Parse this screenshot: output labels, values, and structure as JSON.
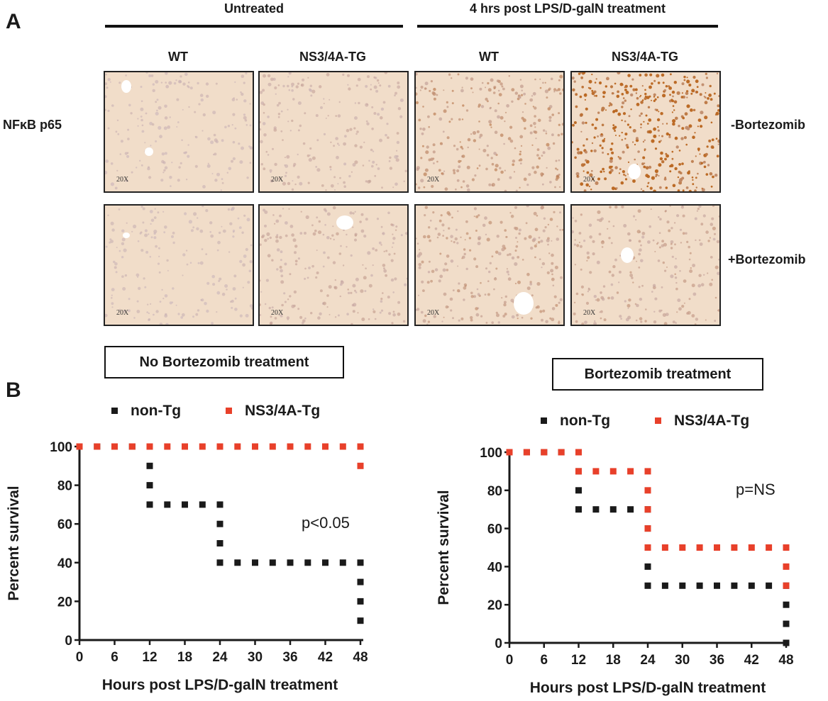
{
  "panel_a": {
    "letter": "A",
    "group_headers": [
      "Untreated",
      "4 hrs post LPS/D-galN treatment"
    ],
    "column_labels": [
      "WT",
      "NS3/4A-TG",
      "WT",
      "NS3/4A-TG"
    ],
    "row_label": "NFκB p65",
    "condition_labels": [
      "-Bortezomib",
      "+Bortezomib"
    ],
    "magnification": "20X",
    "tile_stain_intensity": [
      [
        0.1,
        0.18,
        0.45,
        1.0
      ],
      [
        0.08,
        0.22,
        0.35,
        0.3
      ]
    ],
    "colors": {
      "tissue": "#f1ddc9",
      "nuclei_faint": "#c9b7c2",
      "nuclei_stained": "#b8641e"
    }
  },
  "panel_b": {
    "letter": "B"
  },
  "chart_data": [
    {
      "type": "line",
      "step": true,
      "title": "No Bortezomib treatment",
      "xlabel": "Hours post LPS/D-galN treatment",
      "ylabel": "Percent survival",
      "xlim": [
        0,
        48
      ],
      "ylim": [
        0,
        100
      ],
      "xticks": [
        0,
        6,
        12,
        18,
        24,
        30,
        36,
        42,
        48
      ],
      "yticks": [
        0,
        20,
        40,
        60,
        80,
        100
      ],
      "legend": "top",
      "annotation": "p<0.05",
      "series": [
        {
          "name": "non-Tg",
          "color": "#1a1a1a",
          "x": [
            0,
            12,
            24,
            48
          ],
          "y": [
            100,
            70,
            40,
            10
          ]
        },
        {
          "name": "NS3/4A-Tg",
          "color": "#e8402a",
          "x": [
            0,
            48
          ],
          "y": [
            100,
            90
          ]
        }
      ]
    },
    {
      "type": "line",
      "step": true,
      "title": "Bortezomib treatment",
      "xlabel": "Hours post LPS/D-galN treatment",
      "ylabel": "Percent survival",
      "xlim": [
        0,
        48
      ],
      "ylim": [
        0,
        100
      ],
      "xticks": [
        0,
        6,
        12,
        18,
        24,
        30,
        36,
        42,
        48
      ],
      "yticks": [
        0,
        20,
        40,
        60,
        80,
        100
      ],
      "legend": "top",
      "annotation": "p=NS",
      "series": [
        {
          "name": "non-Tg",
          "color": "#1a1a1a",
          "x": [
            0,
            12,
            24,
            48
          ],
          "y": [
            100,
            70,
            30,
            0
          ]
        },
        {
          "name": "NS3/4A-Tg",
          "color": "#e8402a",
          "x": [
            0,
            12,
            24,
            48
          ],
          "y": [
            100,
            90,
            50,
            30
          ]
        }
      ]
    }
  ]
}
